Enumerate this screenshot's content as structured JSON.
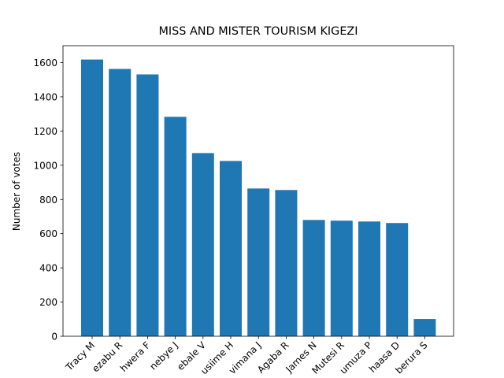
{
  "chart_data": {
    "type": "bar",
    "title": "MISS AND MISTER TOURISM KIGEZI",
    "y_label": "Number of votes",
    "categories": [
      "Tracy M",
      "ezabu R",
      "hwera F",
      "nebye J",
      "ebale V",
      "usiime H",
      "vimana J",
      "Agaba R",
      "James N",
      "Mutesi R",
      "umuza P",
      "haasa D",
      "berura S"
    ],
    "values": [
      1618,
      1563,
      1531,
      1283,
      1071,
      1025,
      864,
      855,
      680,
      676,
      671,
      662,
      101
    ],
    "color": "#1f77b4",
    "ylim": [
      0,
      1699
    ],
    "yticks": [
      0,
      200,
      400,
      600,
      800,
      1000,
      1200,
      1400,
      1600
    ]
  }
}
